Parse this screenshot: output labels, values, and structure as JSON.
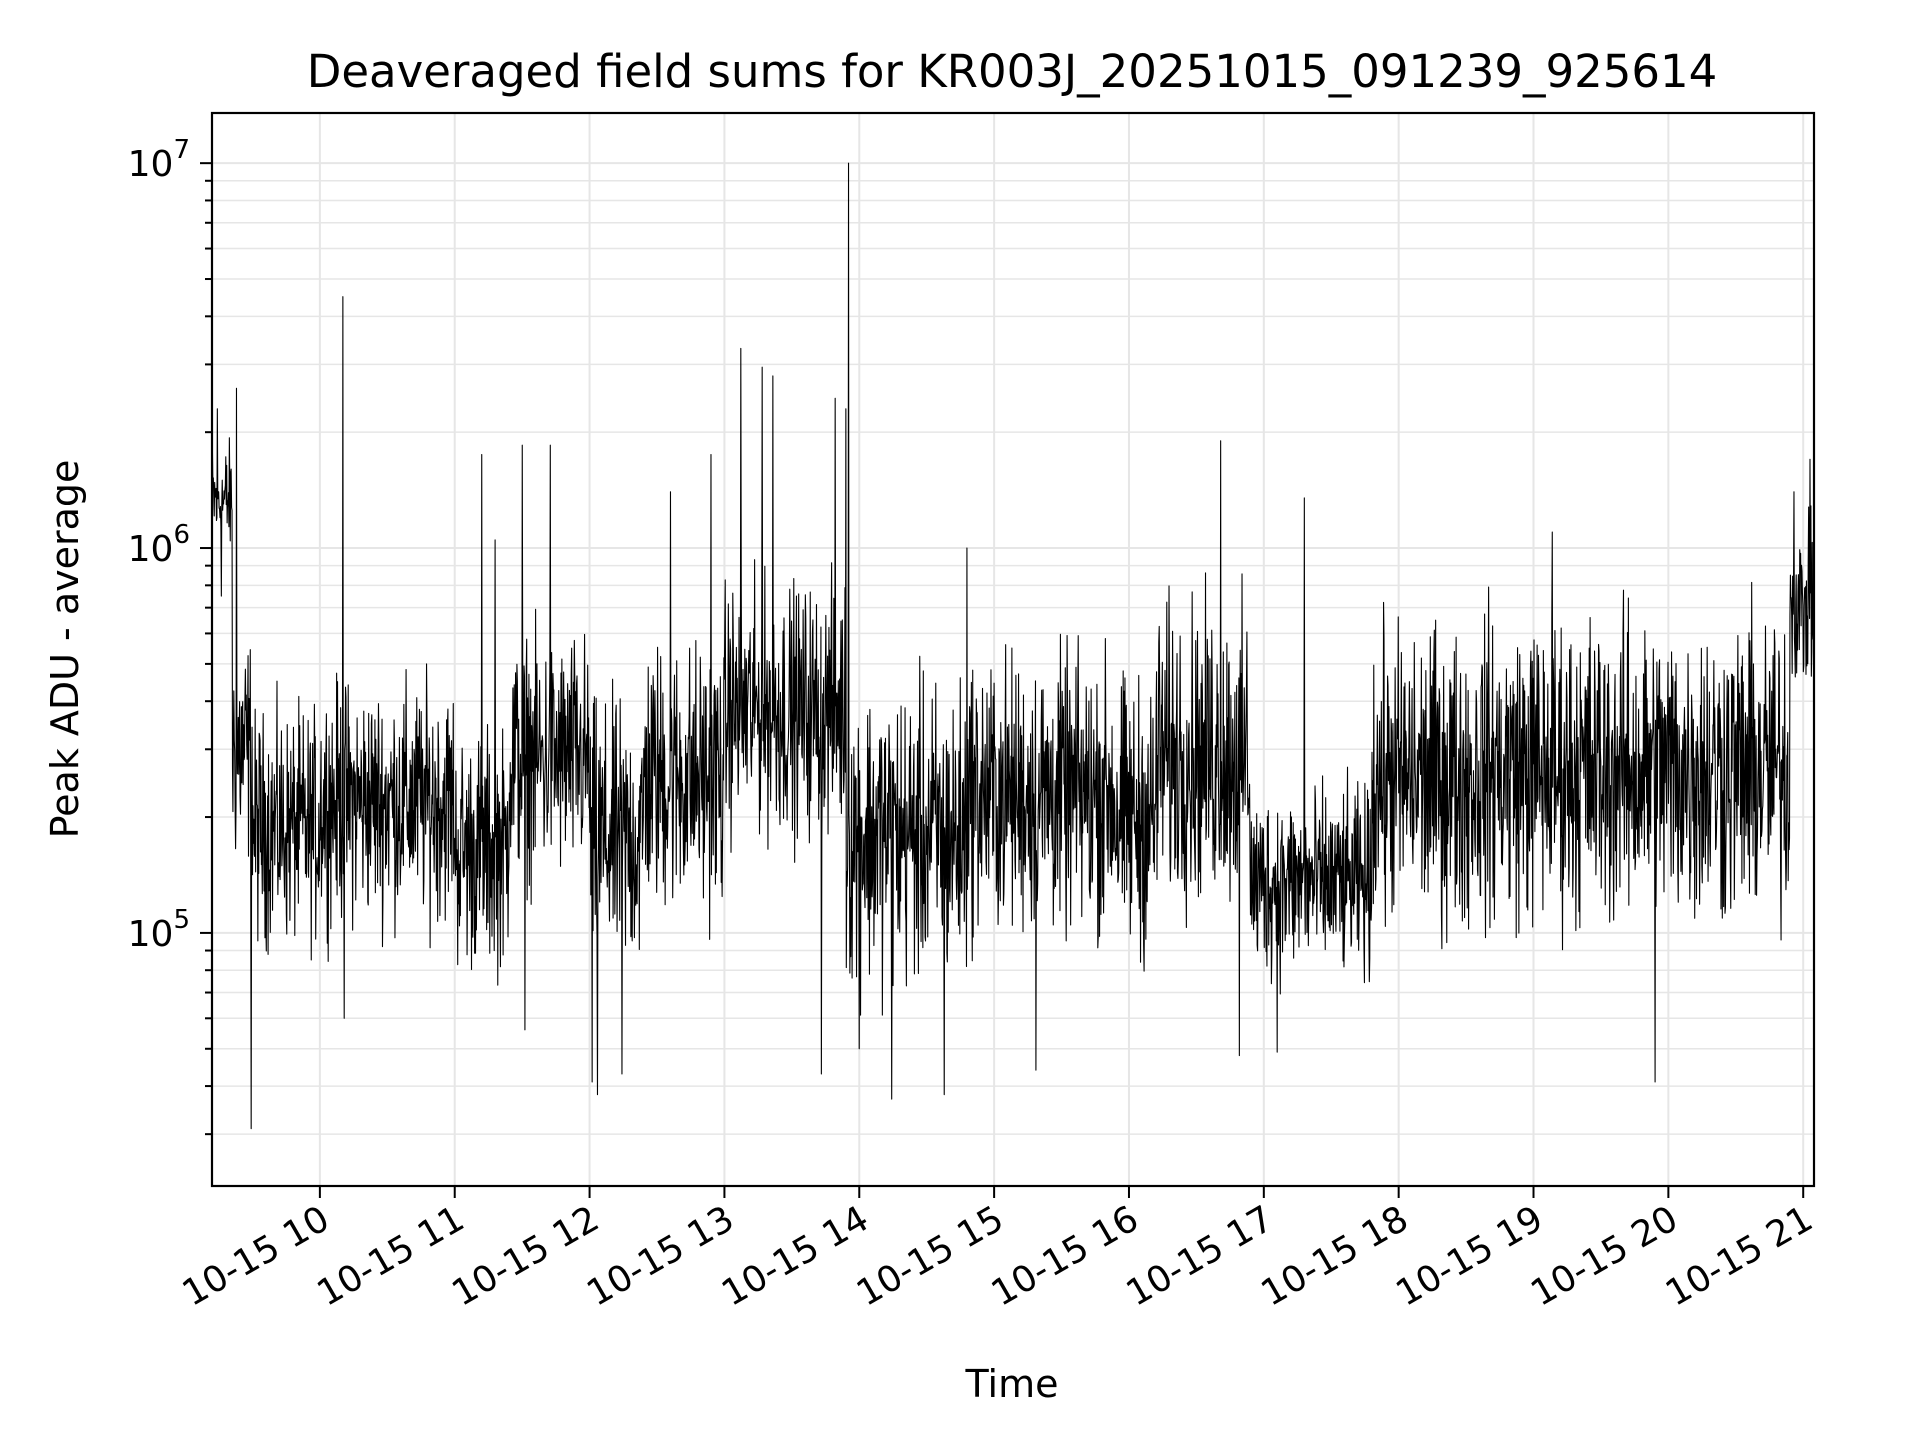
{
  "chart_data": {
    "type": "line",
    "title": "Deaveraged field sums for KR003J_20251015_091239_925614",
    "xlabel": "Time",
    "ylabel": "Peak ADU - average",
    "yscale": "log",
    "ylim": [
      22000,
      13500000
    ],
    "xlim_hours": [
      9.2,
      21.08
    ],
    "grid": true,
    "line_color": "#000000",
    "x_ticks": [
      {
        "hour": 10,
        "label": "10-15 10"
      },
      {
        "hour": 11,
        "label": "10-15 11"
      },
      {
        "hour": 12,
        "label": "10-15 12"
      },
      {
        "hour": 13,
        "label": "10-15 13"
      },
      {
        "hour": 14,
        "label": "10-15 14"
      },
      {
        "hour": 15,
        "label": "10-15 15"
      },
      {
        "hour": 16,
        "label": "10-15 16"
      },
      {
        "hour": 17,
        "label": "10-15 17"
      },
      {
        "hour": 18,
        "label": "10-15 18"
      },
      {
        "hour": 19,
        "label": "10-15 19"
      },
      {
        "hour": 20,
        "label": "10-15 20"
      },
      {
        "hour": 21,
        "label": "10-15 21"
      }
    ],
    "y_ticks": [
      {
        "value": 100000,
        "base": "10",
        "exp": "5"
      },
      {
        "value": 1000000,
        "base": "10",
        "exp": "6"
      },
      {
        "value": 10000000,
        "base": "10",
        "exp": "7"
      }
    ],
    "baseline_segments": [
      {
        "start": 9.2,
        "end": 9.35,
        "low": 800000,
        "high": 2200000
      },
      {
        "start": 9.35,
        "end": 9.5,
        "low": 110000,
        "high": 800000
      },
      {
        "start": 9.5,
        "end": 10.0,
        "low": 70000,
        "high": 500000
      },
      {
        "start": 10.0,
        "end": 11.0,
        "low": 80000,
        "high": 600000
      },
      {
        "start": 11.0,
        "end": 11.4,
        "low": 60000,
        "high": 450000
      },
      {
        "start": 11.4,
        "end": 12.0,
        "low": 100000,
        "high": 800000
      },
      {
        "start": 12.0,
        "end": 12.4,
        "low": 55000,
        "high": 550000
      },
      {
        "start": 12.4,
        "end": 13.0,
        "low": 80000,
        "high": 800000
      },
      {
        "start": 13.0,
        "end": 13.9,
        "low": 130000,
        "high": 1100000
      },
      {
        "start": 13.9,
        "end": 14.8,
        "low": 50000,
        "high": 650000
      },
      {
        "start": 14.8,
        "end": 15.9,
        "low": 70000,
        "high": 750000
      },
      {
        "start": 15.9,
        "end": 16.2,
        "low": 60000,
        "high": 650000
      },
      {
        "start": 16.2,
        "end": 16.9,
        "low": 80000,
        "high": 1050000
      },
      {
        "start": 16.9,
        "end": 17.8,
        "low": 60000,
        "high": 300000
      },
      {
        "start": 17.8,
        "end": 18.6,
        "low": 70000,
        "high": 900000
      },
      {
        "start": 18.6,
        "end": 20.9,
        "low": 70000,
        "high": 1000000
      },
      {
        "start": 20.9,
        "end": 21.08,
        "low": 350000,
        "high": 1400000
      }
    ],
    "spikes": [
      {
        "time": 9.24,
        "value": 2300000
      },
      {
        "time": 9.27,
        "value": 750000
      },
      {
        "time": 9.38,
        "value": 2600000
      },
      {
        "time": 9.49,
        "value": 31000
      },
      {
        "time": 10.17,
        "value": 4500000
      },
      {
        "time": 10.18,
        "value": 60000
      },
      {
        "time": 11.2,
        "value": 1750000
      },
      {
        "time": 11.3,
        "value": 1050000
      },
      {
        "time": 11.5,
        "value": 1850000
      },
      {
        "time": 11.52,
        "value": 56000
      },
      {
        "time": 11.71,
        "value": 1850000
      },
      {
        "time": 12.02,
        "value": 41000
      },
      {
        "time": 12.06,
        "value": 38000
      },
      {
        "time": 12.24,
        "value": 43000
      },
      {
        "time": 12.6,
        "value": 1400000
      },
      {
        "time": 12.9,
        "value": 1750000
      },
      {
        "time": 13.12,
        "value": 3300000
      },
      {
        "time": 13.28,
        "value": 2950000
      },
      {
        "time": 13.36,
        "value": 2800000
      },
      {
        "time": 13.72,
        "value": 43000
      },
      {
        "time": 13.82,
        "value": 2450000
      },
      {
        "time": 13.9,
        "value": 2300000
      },
      {
        "time": 13.92,
        "value": 10000000
      },
      {
        "time": 14.0,
        "value": 50000
      },
      {
        "time": 14.24,
        "value": 37000
      },
      {
        "time": 14.63,
        "value": 38000
      },
      {
        "time": 14.8,
        "value": 1000000
      },
      {
        "time": 15.31,
        "value": 44000
      },
      {
        "time": 16.68,
        "value": 1900000
      },
      {
        "time": 16.82,
        "value": 48000
      },
      {
        "time": 17.3,
        "value": 1350000
      },
      {
        "time": 17.1,
        "value": 49000
      },
      {
        "time": 19.9,
        "value": 41000
      },
      {
        "time": 19.14,
        "value": 1100000
      },
      {
        "time": 20.93,
        "value": 1400000
      },
      {
        "time": 21.05,
        "value": 1700000
      }
    ]
  }
}
